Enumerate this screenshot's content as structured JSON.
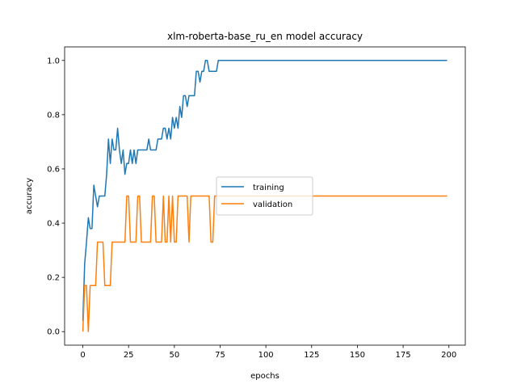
{
  "chart_data": {
    "type": "line",
    "title": "xlm-roberta-base_ru_en model accuracy",
    "xlabel": "epochs",
    "ylabel": "accuracy",
    "xlim": [
      -9.95,
      208.95
    ],
    "ylim": [
      -0.05,
      1.05
    ],
    "xticks": [
      0,
      25,
      50,
      75,
      100,
      125,
      150,
      175,
      200
    ],
    "yticks": [
      0.0,
      0.2,
      0.4,
      0.6,
      0.8,
      1.0
    ],
    "ytick_labels": [
      "0.0",
      "0.2",
      "0.4",
      "0.6",
      "0.8",
      "1.0"
    ],
    "grid": false,
    "legend_position": "center-right",
    "series": [
      {
        "name": "training",
        "color": "#1f77b4",
        "points": [
          [
            0,
            0.04
          ],
          [
            1,
            0.25
          ],
          [
            2,
            0.33
          ],
          [
            3,
            0.42
          ],
          [
            4,
            0.38
          ],
          [
            5,
            0.38
          ],
          [
            6,
            0.54
          ],
          [
            7,
            0.5
          ],
          [
            8,
            0.46
          ],
          [
            9,
            0.5
          ],
          [
            10,
            0.5
          ],
          [
            11,
            0.5
          ],
          [
            12,
            0.5
          ],
          [
            13,
            0.58
          ],
          [
            14,
            0.71
          ],
          [
            15,
            0.62
          ],
          [
            16,
            0.71
          ],
          [
            17,
            0.67
          ],
          [
            18,
            0.67
          ],
          [
            19,
            0.75
          ],
          [
            20,
            0.67
          ],
          [
            21,
            0.62
          ],
          [
            22,
            0.67
          ],
          [
            23,
            0.58
          ],
          [
            24,
            0.62
          ],
          [
            25,
            0.62
          ],
          [
            26,
            0.67
          ],
          [
            27,
            0.62
          ],
          [
            28,
            0.67
          ],
          [
            29,
            0.62
          ],
          [
            30,
            0.67
          ],
          [
            31,
            0.67
          ],
          [
            32,
            0.67
          ],
          [
            33,
            0.67
          ],
          [
            34,
            0.67
          ],
          [
            35,
            0.67
          ],
          [
            36,
            0.71
          ],
          [
            37,
            0.67
          ],
          [
            38,
            0.67
          ],
          [
            39,
            0.67
          ],
          [
            40,
            0.67
          ],
          [
            41,
            0.71
          ],
          [
            42,
            0.71
          ],
          [
            43,
            0.71
          ],
          [
            44,
            0.75
          ],
          [
            45,
            0.75
          ],
          [
            46,
            0.71
          ],
          [
            47,
            0.75
          ],
          [
            48,
            0.71
          ],
          [
            49,
            0.79
          ],
          [
            50,
            0.75
          ],
          [
            51,
            0.79
          ],
          [
            52,
            0.75
          ],
          [
            53,
            0.83
          ],
          [
            54,
            0.79
          ],
          [
            55,
            0.87
          ],
          [
            56,
            0.87
          ],
          [
            57,
            0.83
          ],
          [
            58,
            0.87
          ],
          [
            59,
            0.87
          ],
          [
            60,
            0.87
          ],
          [
            61,
            0.87
          ],
          [
            62,
            0.96
          ],
          [
            63,
            0.96
          ],
          [
            64,
            0.92
          ],
          [
            65,
            0.96
          ],
          [
            66,
            0.96
          ],
          [
            67,
            1.0
          ],
          [
            68,
            1.0
          ],
          [
            69,
            0.96
          ],
          [
            70,
            0.96
          ],
          [
            71,
            0.96
          ],
          [
            72,
            0.96
          ],
          [
            73,
            0.96
          ],
          [
            74,
            1.0
          ],
          [
            199,
            1.0
          ]
        ]
      },
      {
        "name": "validation",
        "color": "#ff7f0e",
        "points": [
          [
            0,
            0.0
          ],
          [
            1,
            0.17
          ],
          [
            2,
            0.17
          ],
          [
            3,
            0.0
          ],
          [
            4,
            0.17
          ],
          [
            5,
            0.17
          ],
          [
            6,
            0.17
          ],
          [
            7,
            0.17
          ],
          [
            8,
            0.33
          ],
          [
            9,
            0.33
          ],
          [
            10,
            0.33
          ],
          [
            11,
            0.33
          ],
          [
            12,
            0.17
          ],
          [
            13,
            0.17
          ],
          [
            14,
            0.17
          ],
          [
            15,
            0.17
          ],
          [
            16,
            0.33
          ],
          [
            17,
            0.33
          ],
          [
            18,
            0.33
          ],
          [
            19,
            0.33
          ],
          [
            20,
            0.33
          ],
          [
            21,
            0.33
          ],
          [
            22,
            0.33
          ],
          [
            23,
            0.33
          ],
          [
            24,
            0.5
          ],
          [
            25,
            0.5
          ],
          [
            26,
            0.33
          ],
          [
            27,
            0.33
          ],
          [
            28,
            0.33
          ],
          [
            29,
            0.33
          ],
          [
            30,
            0.5
          ],
          [
            31,
            0.5
          ],
          [
            32,
            0.33
          ],
          [
            33,
            0.33
          ],
          [
            34,
            0.33
          ],
          [
            35,
            0.33
          ],
          [
            36,
            0.33
          ],
          [
            37,
            0.33
          ],
          [
            38,
            0.5
          ],
          [
            39,
            0.5
          ],
          [
            40,
            0.33
          ],
          [
            41,
            0.33
          ],
          [
            42,
            0.33
          ],
          [
            43,
            0.33
          ],
          [
            44,
            0.5
          ],
          [
            45,
            0.33
          ],
          [
            46,
            0.33
          ],
          [
            47,
            0.5
          ],
          [
            48,
            0.33
          ],
          [
            49,
            0.5
          ],
          [
            50,
            0.33
          ],
          [
            51,
            0.33
          ],
          [
            52,
            0.5
          ],
          [
            53,
            0.5
          ],
          [
            54,
            0.5
          ],
          [
            55,
            0.5
          ],
          [
            56,
            0.5
          ],
          [
            57,
            0.5
          ],
          [
            58,
            0.33
          ],
          [
            59,
            0.5
          ],
          [
            60,
            0.5
          ],
          [
            61,
            0.5
          ],
          [
            62,
            0.5
          ],
          [
            63,
            0.5
          ],
          [
            64,
            0.5
          ],
          [
            65,
            0.5
          ],
          [
            66,
            0.5
          ],
          [
            67,
            0.5
          ],
          [
            68,
            0.5
          ],
          [
            69,
            0.5
          ],
          [
            70,
            0.33
          ],
          [
            71,
            0.33
          ],
          [
            72,
            0.5
          ],
          [
            73,
            0.5
          ],
          [
            74,
            0.5
          ],
          [
            199,
            0.5
          ]
        ]
      }
    ]
  }
}
